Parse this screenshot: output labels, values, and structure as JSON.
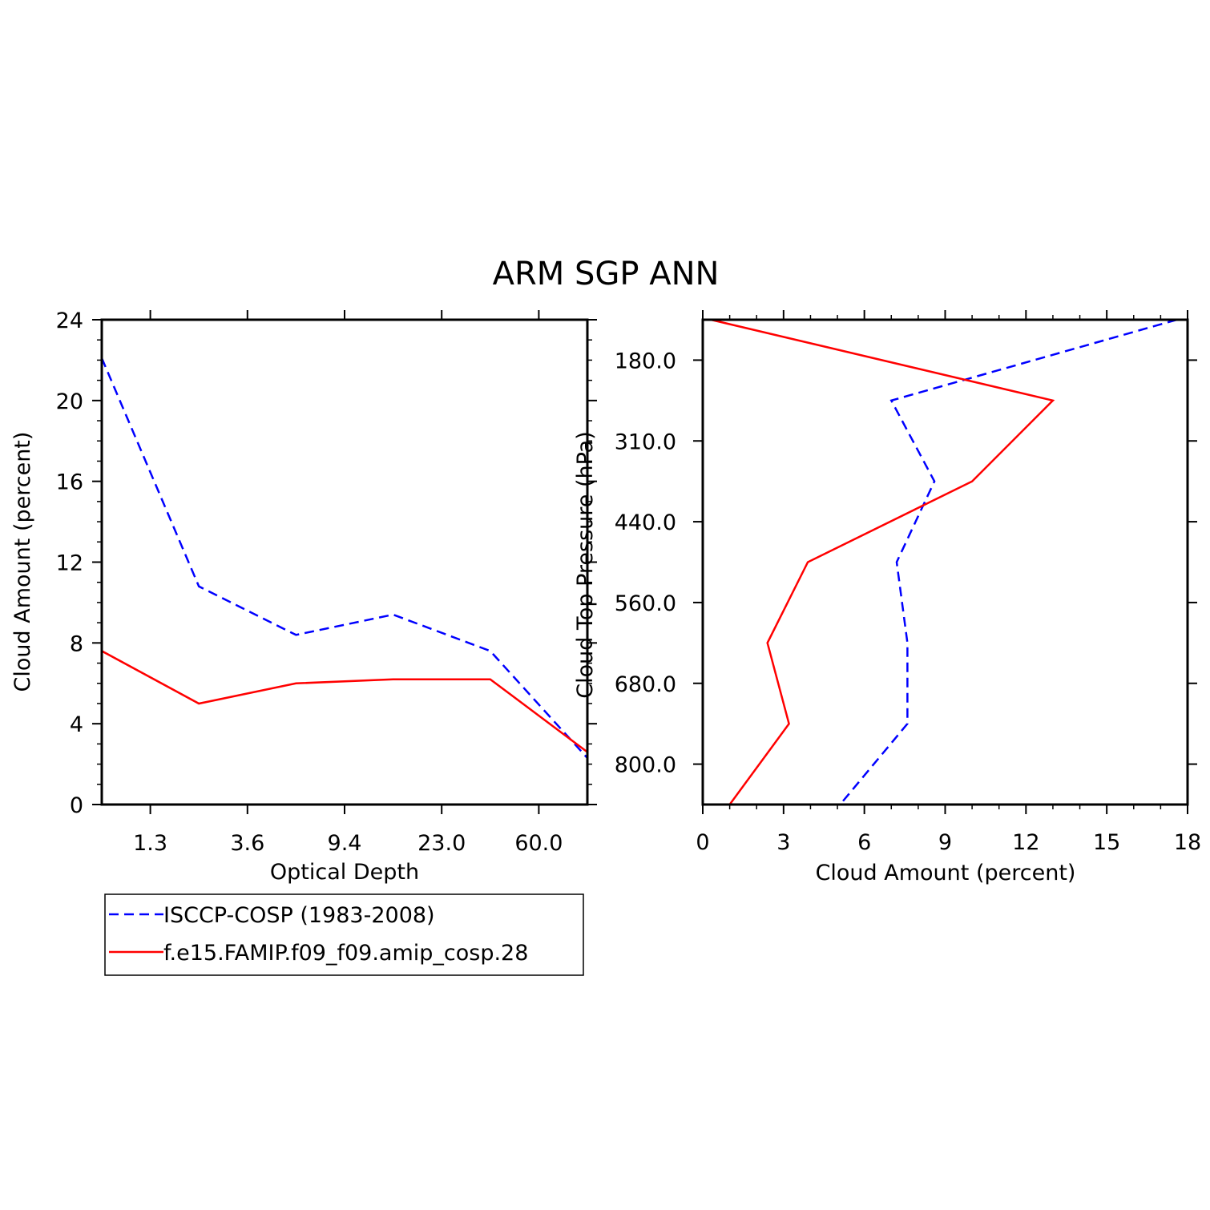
{
  "title": "ARM SGP ANN",
  "legend": [
    {
      "label": "ISCCP-COSP (1983-2008)",
      "color": "#0000ff",
      "dash": true
    },
    {
      "label": "f.e15.FAMIP.f09_f09.amip_cosp.28",
      "color": "#ff0000",
      "dash": false
    }
  ],
  "chart_data": [
    {
      "type": "line",
      "xlabel": "Optical Depth",
      "ylabel": "Cloud Amount (percent)",
      "x": [
        0,
        1,
        2,
        3,
        4,
        5
      ],
      "xlim": [
        0,
        5
      ],
      "xtick_positions": [
        0.5,
        1.5,
        2.5,
        3.5,
        4.5
      ],
      "xtick_labels": [
        "1.3",
        "3.6",
        "9.4",
        "23.0",
        "60.0"
      ],
      "ylim": [
        0,
        24
      ],
      "yticks": [
        0,
        4,
        8,
        12,
        16,
        20,
        24
      ],
      "ytick_labels": [
        "0",
        "4",
        "8",
        "12",
        "16",
        "20",
        "24"
      ],
      "series": [
        {
          "name": "ISCCP-COSP (1983-2008)",
          "color": "#0000ff",
          "dash": true,
          "values": [
            22.1,
            10.8,
            8.4,
            9.4,
            7.6,
            2.3
          ]
        },
        {
          "name": "f.e15.FAMIP.f09_f09.amip_cosp.28",
          "color": "#ff0000",
          "dash": false,
          "values": [
            7.6,
            5.0,
            6.0,
            6.2,
            6.2,
            2.6
          ]
        }
      ]
    },
    {
      "type": "line",
      "orientation": "horizontal",
      "xlabel": "Cloud Amount (percent)",
      "ylabel": "Cloud Top Pressure (hPa)",
      "xlim": [
        0,
        18
      ],
      "xticks": [
        0,
        3,
        6,
        9,
        12,
        15,
        18
      ],
      "xtick_labels": [
        "0",
        "3",
        "6",
        "9",
        "12",
        "15",
        "18"
      ],
      "y": [
        0,
        1,
        2,
        3,
        4,
        5,
        6
      ],
      "ylim": [
        0,
        6
      ],
      "ytick_positions": [
        0.5,
        1.5,
        2.5,
        3.5,
        4.5,
        5.5
      ],
      "ytick_labels": [
        "180.0",
        "310.0",
        "440.0",
        "560.0",
        "680.0",
        "800.0"
      ],
      "series": [
        {
          "name": "ISCCP-COSP (1983-2008)",
          "color": "#0000ff",
          "dash": true,
          "values": [
            17.6,
            7.0,
            8.6,
            7.2,
            7.6,
            7.6,
            5.1
          ]
        },
        {
          "name": "f.e15.FAMIP.f09_f09.amip_cosp.28",
          "color": "#ff0000",
          "dash": false,
          "values": [
            0.3,
            13.0,
            10.0,
            3.9,
            2.4,
            3.2,
            1.0
          ]
        }
      ]
    }
  ]
}
